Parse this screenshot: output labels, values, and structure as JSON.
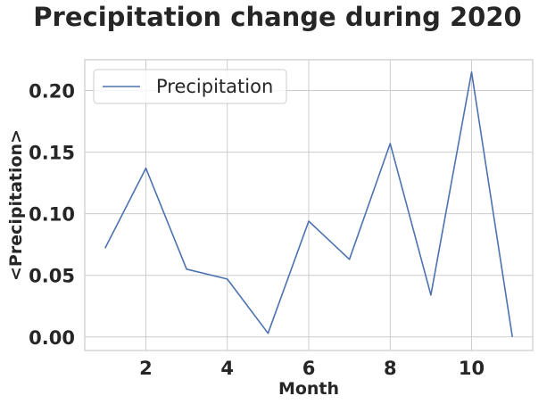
{
  "chart_data": {
    "type": "line",
    "title": "Precipitation change during 2020",
    "xlabel": "Month",
    "ylabel": "<Precipitation>",
    "xlim": [
      0.5,
      11.5
    ],
    "ylim": [
      -0.011,
      0.225
    ],
    "xticks": [
      2,
      4,
      6,
      8,
      10
    ],
    "yticks": [
      "0.00",
      "0.05",
      "0.10",
      "0.15",
      "0.20"
    ],
    "grid": true,
    "legend_position": "top-left",
    "series": [
      {
        "name": "Precipitation",
        "color": "#4c72b0",
        "x": [
          1,
          2,
          3,
          4,
          5,
          6,
          7,
          8,
          9,
          10,
          11
        ],
        "y": [
          0.072,
          0.137,
          0.055,
          0.047,
          0.003,
          0.094,
          0.063,
          0.157,
          0.034,
          0.215,
          0.0
        ]
      }
    ]
  }
}
